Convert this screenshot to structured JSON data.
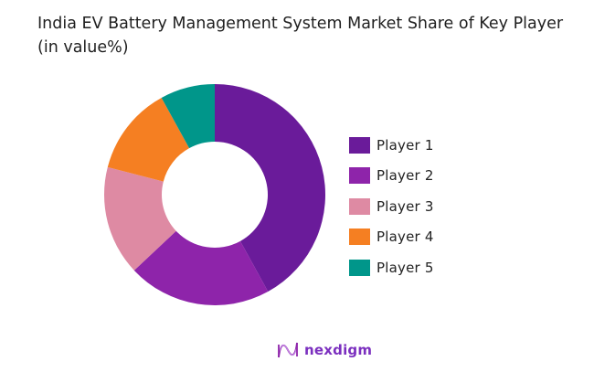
{
  "title": "India EV Battery Management System Market Share of Key Player (in value%)",
  "logo": {
    "icon": "nexdigm-wave-icon",
    "text": "nexdigm"
  },
  "chart_data": {
    "type": "pie",
    "variant": "donut",
    "title": "India EV Battery Management System Market Share of Key Player (in value%)",
    "categories": [
      "Player 1",
      "Player 2",
      "Player 3",
      "Player 4",
      "Player 5"
    ],
    "values": [
      42,
      21,
      16,
      13,
      8
    ],
    "colors": [
      "#6a1b9a",
      "#8e24aa",
      "#de8aa3",
      "#f57f22",
      "#00968a"
    ],
    "legend_position": "right",
    "start_angle_deg": 0,
    "direction": "clockwise"
  },
  "legend": [
    {
      "label": "Player 1",
      "color": "#6a1b9a"
    },
    {
      "label": "Player 2",
      "color": "#8e24aa"
    },
    {
      "label": "Player 3",
      "color": "#de8aa3"
    },
    {
      "label": "Player 4",
      "color": "#f57f22"
    },
    {
      "label": "Player 5",
      "color": "#00968a"
    }
  ]
}
